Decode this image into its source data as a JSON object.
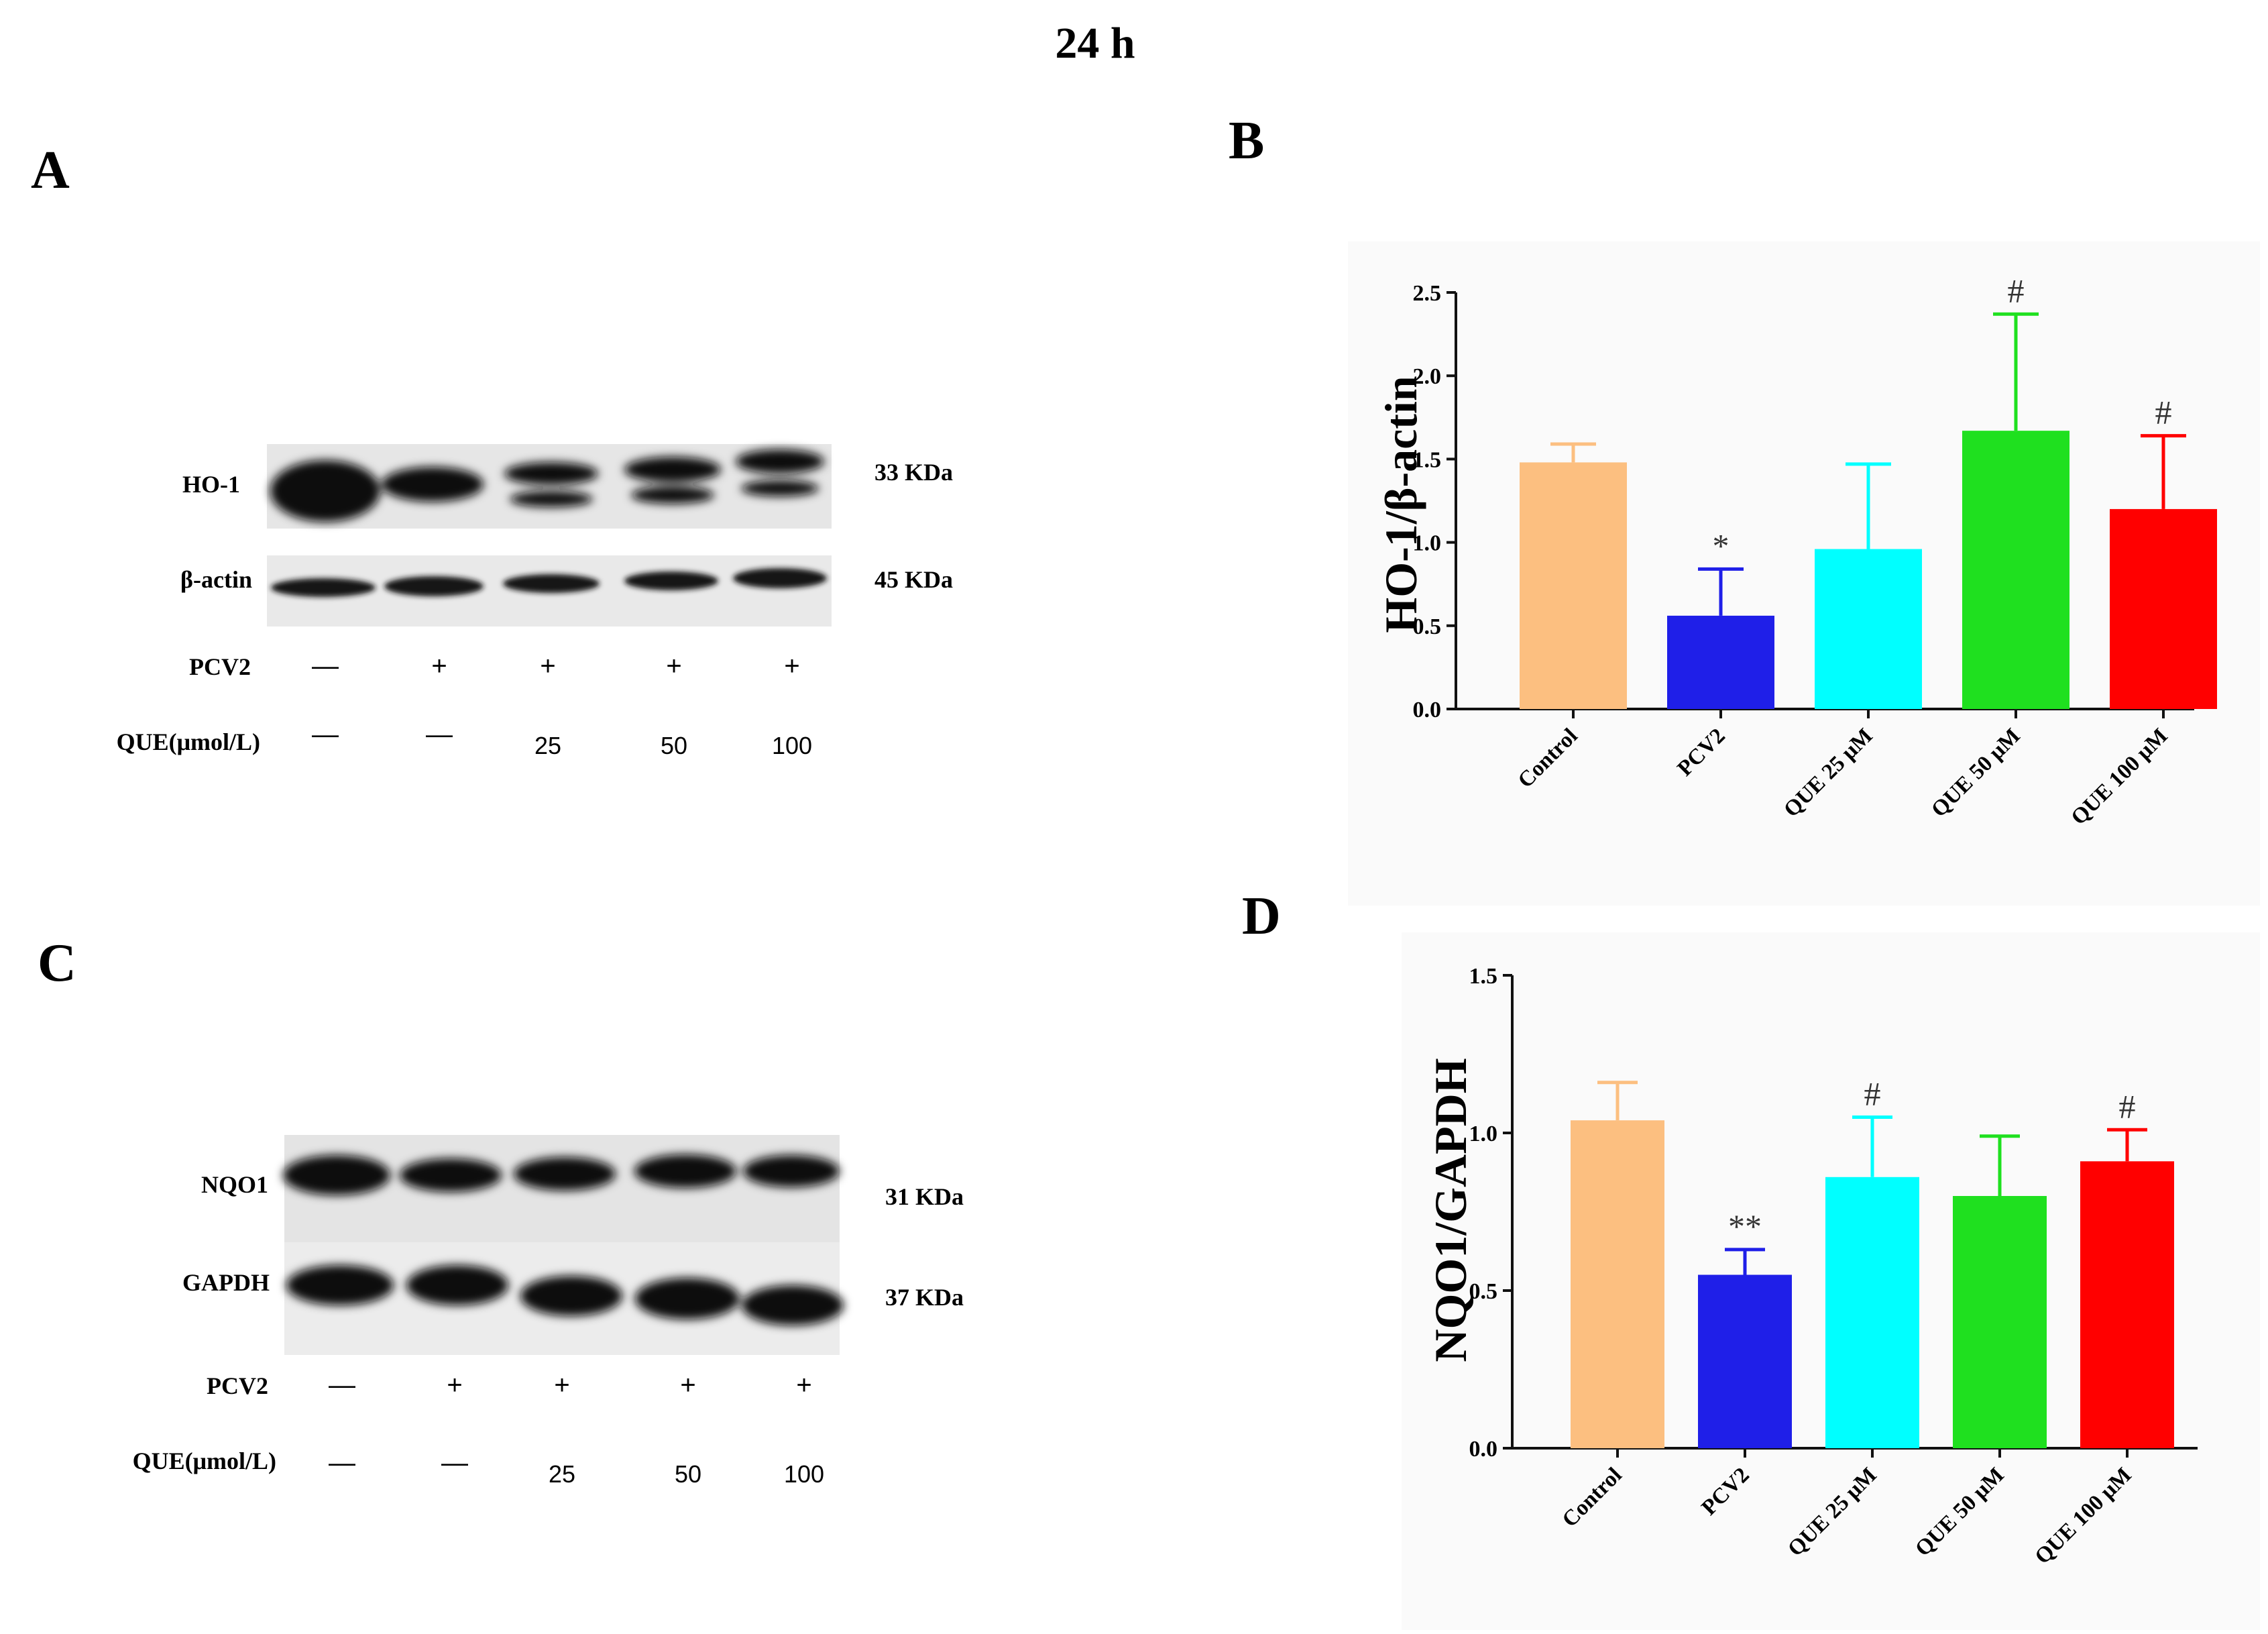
{
  "figure": {
    "title": "24 h",
    "panels": {
      "a": "A",
      "b": "B",
      "c": "C",
      "d": "D"
    }
  },
  "blots": [
    {
      "rows": [
        {
          "protein": "HO-1",
          "size": "33 KDa"
        },
        {
          "protein": "β-actin",
          "size": "45 KDa"
        }
      ],
      "pcv2_label": "PCV2",
      "pcv2": [
        "—",
        "+",
        "+",
        "+",
        "+"
      ],
      "que_label": "QUE(μmol/L)",
      "que": [
        "—",
        "—",
        "25",
        "50",
        "100"
      ]
    },
    {
      "rows": [
        {
          "protein": "NQO1",
          "size": "31 KDa"
        },
        {
          "protein": "GAPDH",
          "size": "37 KDa"
        }
      ],
      "pcv2_label": "PCV2",
      "pcv2": [
        "—",
        "+",
        "+",
        "+",
        "+"
      ],
      "que_label": "QUE(μmol/L)",
      "que": [
        "—",
        "—",
        "25",
        "50",
        "100"
      ]
    }
  ],
  "chart_data": [
    {
      "type": "bar",
      "ylabel": "HO-1/β-actin",
      "categories": [
        "Control",
        "PCV2",
        "QUE 25 μM",
        "QUE 50 μM",
        "QUE 100 μM"
      ],
      "values": [
        1.48,
        0.56,
        0.96,
        1.67,
        1.2
      ],
      "errors": [
        0.11,
        0.28,
        0.51,
        0.7,
        0.44
      ],
      "significance": [
        "",
        "*",
        "",
        "#",
        "#"
      ],
      "colors": [
        "#fcbf80",
        "#1f1fe8",
        "#00ffff",
        "#1fe01f",
        "#ff0000"
      ],
      "ylim": [
        0,
        2.5
      ],
      "yticks": [
        "0.0",
        "0.5",
        "1.0",
        "1.5",
        "2.0",
        "2.5"
      ]
    },
    {
      "type": "bar",
      "ylabel": "NQO1/GAPDH",
      "categories": [
        "Control",
        "PCV2",
        "QUE 25 μM",
        "QUE 50 μM",
        "QUE 100 μM"
      ],
      "values": [
        1.04,
        0.55,
        0.86,
        0.8,
        0.91
      ],
      "errors": [
        0.12,
        0.08,
        0.19,
        0.19,
        0.1
      ],
      "significance": [
        "",
        "**",
        "#",
        "",
        "#"
      ],
      "colors": [
        "#fcbf80",
        "#1f1fe8",
        "#00ffff",
        "#1fe01f",
        "#ff0000"
      ],
      "ylim": [
        0,
        1.5
      ],
      "yticks": [
        "0.0",
        "0.5",
        "1.0",
        "1.5"
      ]
    }
  ]
}
